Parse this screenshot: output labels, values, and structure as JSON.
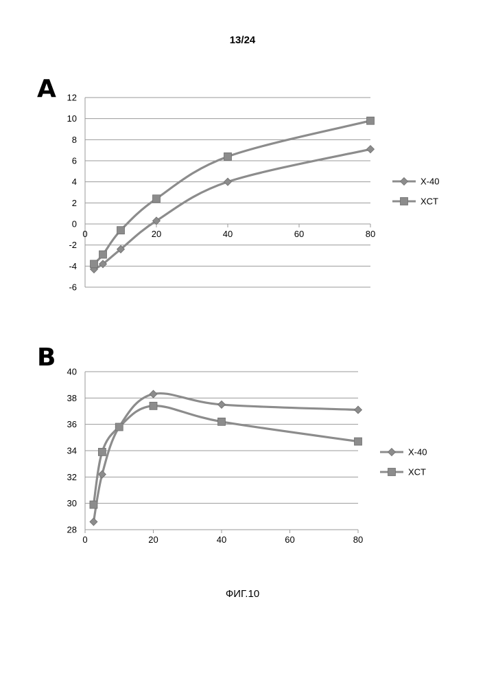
{
  "page_number": "13/24",
  "caption": "ФИГ.10",
  "chart_data": [
    {
      "panel": "A",
      "type": "line",
      "x_categories": [
        "0",
        "20",
        "40",
        "60",
        "80"
      ],
      "ylim": [
        -6,
        12
      ],
      "y_ticks": [
        12,
        10,
        8,
        6,
        4,
        2,
        0,
        -2,
        -4,
        -6
      ],
      "grid": true,
      "legend_position": "right",
      "series": [
        {
          "name": "X-40",
          "marker": "diamond",
          "color": "#8c8c8c",
          "x": [
            2.5,
            5,
            10,
            20,
            40,
            80
          ],
          "y": [
            -4.3,
            -3.8,
            -2.4,
            0.3,
            4.0,
            7.1
          ]
        },
        {
          "name": "XCT",
          "marker": "square",
          "color": "#8c8c8c",
          "x": [
            2.5,
            5,
            10,
            20,
            40,
            80
          ],
          "y": [
            -3.8,
            -2.9,
            -0.6,
            2.4,
            6.4,
            9.8
          ]
        }
      ]
    },
    {
      "panel": "B",
      "type": "line",
      "x_categories": [
        "0",
        "20",
        "40",
        "60",
        "80"
      ],
      "ylim": [
        28,
        40
      ],
      "y_ticks": [
        40,
        38,
        36,
        34,
        32,
        30,
        28
      ],
      "grid": true,
      "legend_position": "right",
      "series": [
        {
          "name": "X-40",
          "marker": "diamond",
          "color": "#8c8c8c",
          "x": [
            2.5,
            5,
            10,
            20,
            40,
            80
          ],
          "y": [
            28.6,
            32.2,
            35.8,
            38.3,
            37.5,
            37.1
          ]
        },
        {
          "name": "XCT",
          "marker": "square",
          "color": "#8c8c8c",
          "x": [
            2.5,
            5,
            10,
            20,
            40,
            80
          ],
          "y": [
            29.9,
            33.9,
            35.8,
            37.4,
            36.2,
            34.7
          ]
        }
      ]
    }
  ]
}
